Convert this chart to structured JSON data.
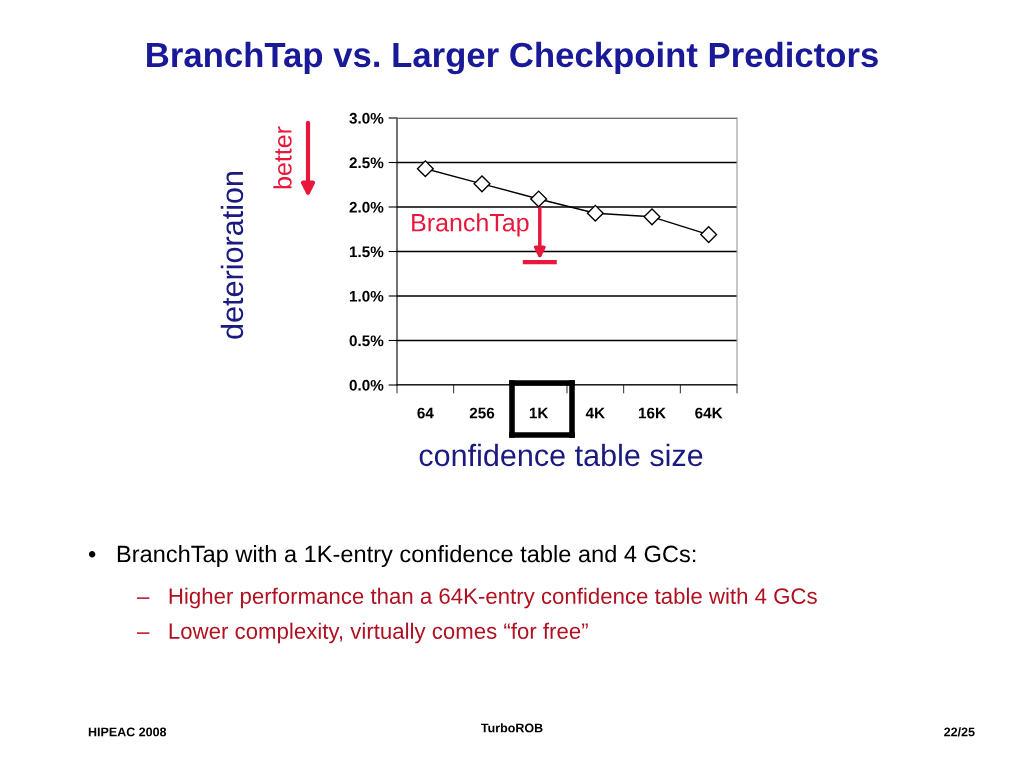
{
  "chart_data": {
    "type": "line",
    "title": "BranchTap vs. Larger Checkpoint Predictors",
    "xlabel": "confidence table size",
    "ylabel": "deterioration",
    "categories": [
      "64",
      "256",
      "1K",
      "4K",
      "16K",
      "64K"
    ],
    "series": [
      {
        "color": "#000000",
        "values": [
          2.43,
          2.26,
          2.09,
          1.93,
          1.89,
          1.69
        ]
      }
    ],
    "marker": "diamond",
    "line_style": "solid",
    "grid": "y",
    "legend": false,
    "ylim": [
      0,
      3.0
    ],
    "yticks": [
      {
        "value": 0,
        "label": "0.0%"
      },
      {
        "value": 0.5,
        "label": "0.5%"
      },
      {
        "value": 1.0,
        "label": "1.0%"
      },
      {
        "value": 1.5,
        "label": "1.5%"
      },
      {
        "value": 2.0,
        "label": "2.0%"
      },
      {
        "value": 2.5,
        "label": "2.5%"
      },
      {
        "value": 3.0,
        "label": "3.0%"
      }
    ],
    "annotations": [
      "BranchTap",
      "better",
      "•   BranchTap with a 1K-entry confidence table and 4 GCs:",
      "–   Higher performance than a 64K-entry confidence table with 4 GCs",
      "–   Lower complexity, virtually comes “for free”",
      "HIPEAC 2008",
      "TurboROB",
      "22/25"
    ]
  }
}
